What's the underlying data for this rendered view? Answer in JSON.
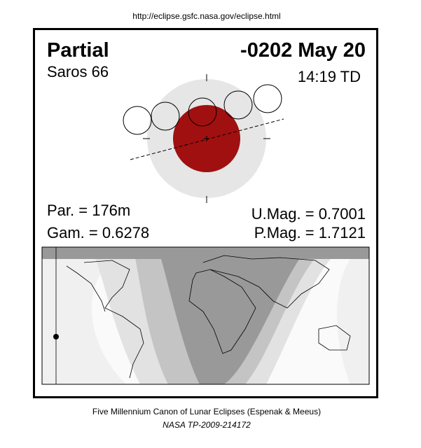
{
  "url": "http://eclipse.gsfc.nasa.gov/eclipse.html",
  "header": {
    "type": "Partial",
    "date": "-0202 May 20",
    "saros": "Saros  66",
    "time": "14:19 TD"
  },
  "parameters": {
    "par": "Par. = 176m",
    "gam": "Gam. = 0.6278",
    "umag": "U.Mag. = 0.7001",
    "pmag": "P.Mag. = 1.7121"
  },
  "footer": {
    "line1": "Five Millennium Canon of Lunar Eclipses (Espenak & Meeus)",
    "line2": "NASA TP-2009-214172"
  }
}
